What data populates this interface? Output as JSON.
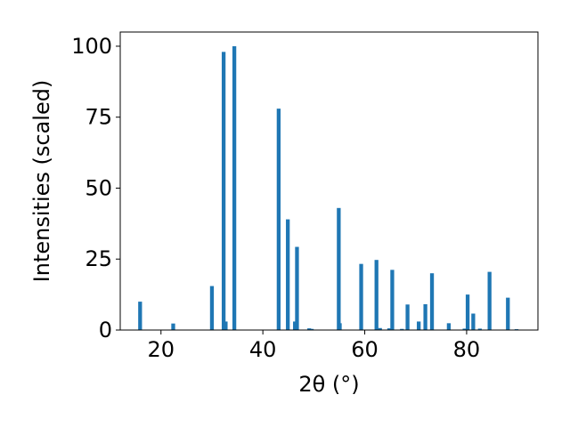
{
  "chart_data": {
    "type": "bar",
    "xlabel": "2θ (°)",
    "ylabel": "Intensities (scaled)",
    "xlim": [
      12,
      94
    ],
    "ylim": [
      0,
      105
    ],
    "xticks": [
      20,
      40,
      60,
      80
    ],
    "yticks": [
      0,
      25,
      50,
      75,
      100
    ],
    "grid": false,
    "bar_color": "#1f77b4",
    "bar_width_units": 0.75,
    "x": [
      15.9,
      22.4,
      30.0,
      32.3,
      32.7,
      34.4,
      43.1,
      44.9,
      46.3,
      46.7,
      49.1,
      49.6,
      54.9,
      55.1,
      59.3,
      62.3,
      63.0,
      64.8,
      65.4,
      67.3,
      68.4,
      70.6,
      71.9,
      73.2,
      76.5,
      79.6,
      80.2,
      81.3,
      82.6,
      84.5,
      88.1,
      89.8
    ],
    "y": [
      10.0,
      2.3,
      15.5,
      98.0,
      3.0,
      100.0,
      78.0,
      39.0,
      3.0,
      29.3,
      0.6,
      0.4,
      43.0,
      2.4,
      23.3,
      24.7,
      0.7,
      0.6,
      21.2,
      0.4,
      9.0,
      3.0,
      9.1,
      20.0,
      2.4,
      0.5,
      12.5,
      5.8,
      0.5,
      20.5,
      11.4,
      0.3
    ]
  }
}
